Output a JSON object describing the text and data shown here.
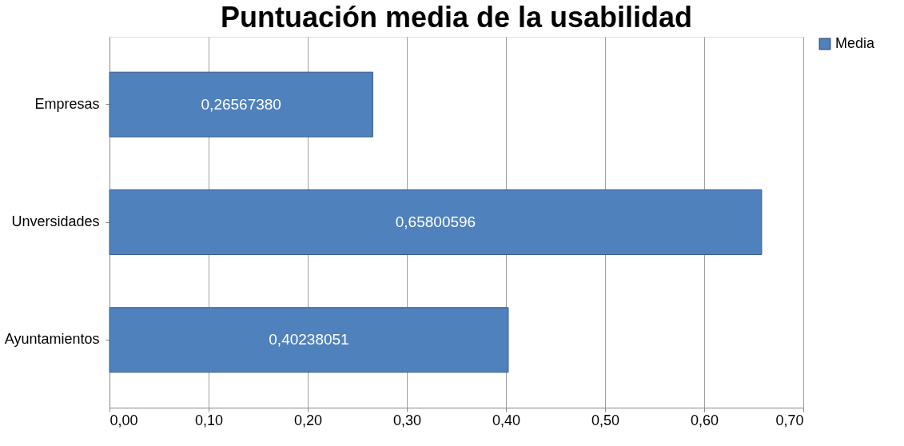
{
  "chart_data": {
    "type": "bar",
    "orientation": "horizontal",
    "title": "Puntuación media de la usabilidad",
    "categories": [
      "Empresas",
      "Unversidades",
      "Ayuntamientos"
    ],
    "series": [
      {
        "name": "Media",
        "color": "#4f81bd",
        "values": [
          0.2656738,
          0.65800596,
          0.40238051
        ],
        "value_labels": [
          "0,26567380",
          "0,65800596",
          "0,40238051"
        ]
      }
    ],
    "xlim": [
      0,
      0.7
    ],
    "xticks": [
      {
        "value": 0,
        "label": "0,00"
      },
      {
        "value": 0.1,
        "label": "0,10"
      },
      {
        "value": 0.2,
        "label": "0,20"
      },
      {
        "value": 0.3,
        "label": "0,30"
      },
      {
        "value": 0.4,
        "label": "0,40"
      },
      {
        "value": 0.5,
        "label": "0,50"
      },
      {
        "value": 0.6,
        "label": "0,60"
      },
      {
        "value": 0.7,
        "label": "0,70"
      }
    ],
    "grid": "x",
    "legend": "right"
  }
}
